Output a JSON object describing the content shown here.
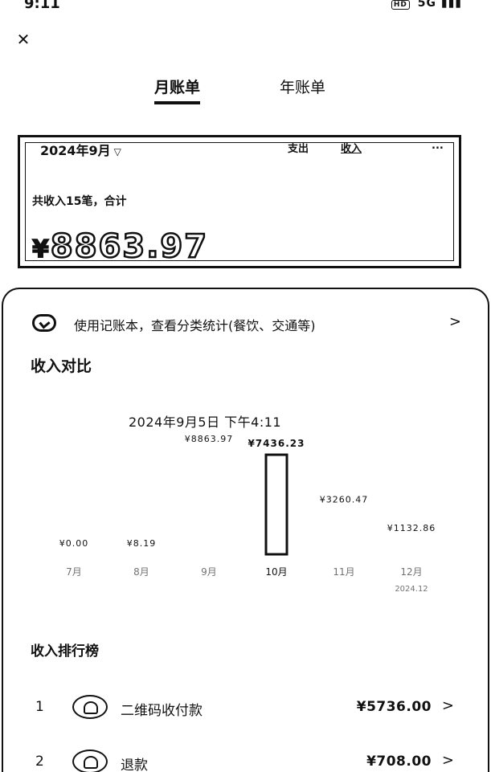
{
  "status_bar": {
    "time": "9:11",
    "hd": "HD",
    "signal": "5G"
  },
  "nav": {
    "close_label": "✕"
  },
  "tabs": [
    {
      "label": "月账单",
      "active": true
    },
    {
      "label": "年账单",
      "active": false
    }
  ],
  "summary": {
    "month": "2024年9月",
    "toggles": [
      "支出",
      "收入",
      "..."
    ],
    "line": "共收入15笔，合计",
    "currency": "¥",
    "amount": "8863.97"
  },
  "promo": {
    "text": "使用记账本，查看分类统计(餐饮、交通等)",
    "chevron": ">"
  },
  "compare": {
    "title": "收入对比",
    "tooltip_date": "2024年9月5日 下午4:11"
  },
  "chart_data": {
    "type": "bar",
    "categories": [
      "7月",
      "8月",
      "9月",
      "10月",
      "11月",
      "12月"
    ],
    "values": [
      0.0,
      8.19,
      8863.97,
      7436.23,
      3260.47,
      1132.86
    ],
    "value_labels": [
      "¥0.00",
      "¥8.19",
      "¥8863.97",
      "¥7436.23",
      "¥3260.47",
      "¥1132.86"
    ],
    "sub_labels": [
      "",
      "",
      "",
      "",
      "",
      "2024.12"
    ],
    "selected_index": 3,
    "ylim": [
      0,
      9000
    ]
  },
  "ranking": {
    "title": "收入排行榜",
    "items": [
      {
        "rank": "1",
        "label": "二维码收付款",
        "amount": "¥5736.00"
      },
      {
        "rank": "2",
        "label": "退款",
        "amount": "¥708.00"
      }
    ],
    "chevron": ">"
  },
  "colors": {
    "ink": "#111111",
    "background": "#ffffff"
  }
}
